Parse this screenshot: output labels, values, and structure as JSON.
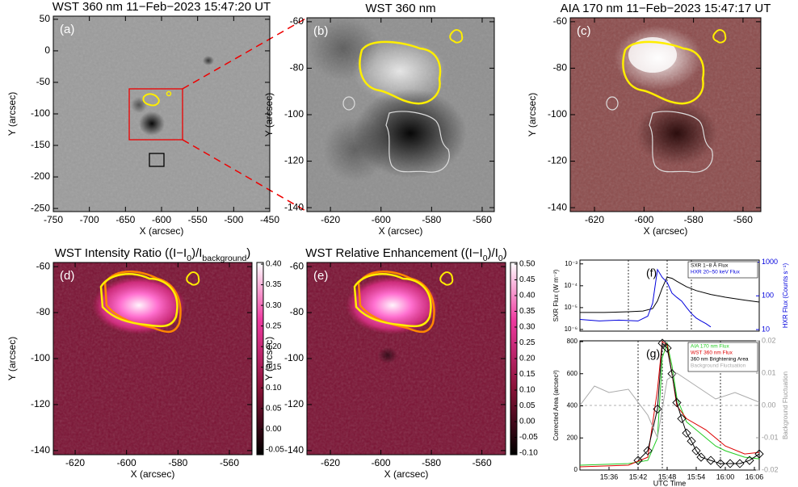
{
  "chart_data": [
    {
      "type": "image",
      "panel": "(a)",
      "title": "WST 360 nm 11−Feb−2023 15:47:20 UT",
      "xlabel": "X (arcsec)",
      "ylabel": "Y (arcsec)",
      "xlim": [
        -750,
        -450
      ],
      "ylim": [
        -255,
        55
      ],
      "xticks": [
        -750,
        -700,
        -650,
        -600,
        -550,
        -500,
        -450
      ],
      "yticks": [
        50,
        0,
        -50,
        -100,
        -150,
        -200,
        -250
      ]
    },
    {
      "type": "image",
      "panel": "(b)",
      "title": "WST 360 nm",
      "xlabel": "X (arcsec)",
      "ylabel": "Y (arcsec)",
      "xlim": [
        -629.3,
        -555.2
      ],
      "ylim": [
        -141.7,
        -58.3
      ],
      "xticks": [
        -620,
        -600,
        -580,
        -560
      ],
      "yticks": [
        -60,
        -80,
        -100,
        -120,
        -140
      ]
    },
    {
      "type": "image",
      "panel": "(c)",
      "title": "AIA 170 nm 11−Feb−2023 15:47:17 UT",
      "xlabel": "X (arcsec)",
      "ylabel": "Y (arcsec)",
      "xlim": [
        -629.8,
        -552.8
      ],
      "ylim": [
        -141.7,
        -58.3
      ],
      "xticks": [
        -620,
        -600,
        -580,
        -560
      ],
      "yticks": [
        -60,
        -80,
        -100,
        -120,
        -140
      ]
    },
    {
      "type": "image",
      "panel": "(d)",
      "title": [
        "WST Intensity Ratio ((I−I",
        "0",
        ")/I",
        "background",
        ")"
      ],
      "xlabel": "X (arcsec)",
      "ylabel": "Y (arcsec)",
      "xlim": [
        -628.5,
        -551.2
      ],
      "ylim": [
        -141.8,
        -58.2
      ],
      "xticks": [
        -620,
        -600,
        -580,
        -560
      ],
      "yticks": [
        -60,
        -80,
        -100,
        -120,
        -140
      ],
      "colorbar": {
        "lim": [
          -0.062,
          0.404
        ],
        "ticks": [
          {
            "value": 0.4,
            "label": "0.40"
          },
          {
            "value": 0.35,
            "label": "0.35"
          },
          {
            "value": 0.3,
            "label": "0.30"
          },
          {
            "value": 0.25,
            "label": "0.25"
          },
          {
            "value": 0.2,
            "label": "0.20"
          },
          {
            "value": 0.15,
            "label": "0.15"
          },
          {
            "value": 0.1,
            "label": "0.10"
          },
          {
            "value": 0.05,
            "label": "0.05"
          },
          {
            "value": 0,
            "label": "0.00"
          },
          {
            "value": -0.05,
            "label": "-0.05"
          }
        ]
      }
    },
    {
      "type": "image",
      "panel": "(e)",
      "title": [
        "WST Relative Enhancement ((I−I",
        "0",
        ")/I",
        "0",
        ")"
      ],
      "xlabel": "X (arcsec)",
      "ylabel": "Y (arcsec)",
      "xlim": [
        -629.3,
        -550.6
      ],
      "ylim": [
        -141.8,
        -58.2
      ],
      "xticks": [
        -620,
        -600,
        -580,
        -560
      ],
      "yticks": [
        -60,
        -80,
        -100,
        -120,
        -140
      ],
      "colorbar": {
        "lim": [
          -0.105,
          0.505
        ],
        "ticks": [
          {
            "value": 0.5,
            "label": "0.50"
          },
          {
            "value": 0.45,
            "label": "0.45"
          },
          {
            "value": 0.4,
            "label": "0.40"
          },
          {
            "value": 0.35,
            "label": "0.35"
          },
          {
            "value": 0.3,
            "label": "0.30"
          },
          {
            "value": 0.25,
            "label": "0.25"
          },
          {
            "value": 0.2,
            "label": "0.20"
          },
          {
            "value": 0.15,
            "label": "0.15"
          },
          {
            "value": 0.1,
            "label": "0.10"
          },
          {
            "value": 0.05,
            "label": "0.05"
          },
          {
            "value": 0,
            "label": "0.00"
          },
          {
            "value": -0.05,
            "label": "-0.05"
          },
          {
            "value": -0.1,
            "label": "-0.10"
          }
        ]
      }
    },
    {
      "type": "line",
      "panel": "(f)",
      "ylabel": "SXR Flux (W m⁻²)",
      "y2label": "HXR Flux (Counts s⁻¹)",
      "y2color": "#0000dd",
      "log": true,
      "xlim": [
        "15:30",
        "16:07"
      ],
      "ylim": [
        8.4e-07,
        0.0015
      ],
      "yticks": [
        {
          "value": 0.001,
          "label": "10⁻³"
        },
        {
          "value": 0.0001,
          "label": "10⁻⁴"
        },
        {
          "value": 1e-05,
          "label": "10⁻⁵"
        },
        {
          "value": 1e-06,
          "label": "10⁻⁶"
        }
      ],
      "y2lim": [
        9,
        1150
      ],
      "y2ticks": [
        1000,
        100,
        10
      ],
      "vlines": [
        "15:40",
        "15:48",
        "15:53"
      ],
      "legend": "upper right",
      "series": [
        {
          "name": "SXR 1−8 Å Flux",
          "color": "#000000",
          "x": [
            "15:30",
            "15:35",
            "15:40",
            "15:43",
            "15:45",
            "15:46",
            "15:47",
            "15:48",
            "15:49",
            "15:50",
            "15:52",
            "15:54",
            "15:57",
            "16:00",
            "16:04",
            "16:07"
          ],
          "values": [
            6e-06,
            6e-06,
            6.5e-06,
            7e-06,
            9e-06,
            2e-05,
            8e-05,
            0.00025,
            0.00022,
            0.00016,
            9e-05,
            6e-05,
            4e-05,
            3e-05,
            2.2e-05,
            1.8e-05
          ]
        },
        {
          "name": "HXR 20−50 keV Flux",
          "color": "#0000dd",
          "axis": "y2",
          "x": [
            "15:30",
            "15:34",
            "15:38",
            "15:42",
            "15:44",
            "15:45",
            "15:46",
            "15:47",
            "15:48",
            "15:49",
            "15:50",
            "15:51",
            "15:52",
            "15:53",
            "15:54",
            "15:55",
            "15:56",
            "15:57"
          ],
          "values": [
            20,
            18,
            19,
            18,
            25,
            60,
            600,
            350,
            250,
            120,
            90,
            70,
            45,
            30,
            22,
            18,
            15,
            12
          ]
        }
      ]
    },
    {
      "type": "line",
      "panel": "(g)",
      "xlabel": "UTC Time",
      "ylabel": "Corrected Area (arcsec²)",
      "y2label": "Background Fluctuation",
      "y2color": "#999999",
      "xlim": [
        "15:30",
        "16:07"
      ],
      "xticks": [
        "15:36",
        "15:42",
        "15:48",
        "15:54",
        "16:00",
        "16:06"
      ],
      "ylim": [
        0,
        805
      ],
      "yticks": [
        0,
        200,
        400,
        600,
        800
      ],
      "y2lim": [
        -0.02,
        0.02
      ],
      "y2ticks": [
        {
          "value": 0.02,
          "label": "0.02"
        },
        {
          "value": 0.01,
          "label": "0.01"
        },
        {
          "value": 0,
          "label": "0.00"
        },
        {
          "value": -0.01,
          "label": "-0.01"
        },
        {
          "value": -0.02,
          "label": "-0.02"
        }
      ],
      "y2_reference": 0,
      "vlines": [
        "15:42",
        "15:47",
        "15:59"
      ],
      "legend": "upper right",
      "series": [
        {
          "name": "AIA 170 nm Flux",
          "color": "#22cc22",
          "x": [
            "15:30",
            "15:40",
            "15:44",
            "15:46",
            "15:47",
            "15:48",
            "15:49",
            "15:50",
            "15:52",
            "15:54",
            "15:56",
            "15:58",
            "16:00",
            "16:04",
            "16:07"
          ],
          "values": [
            30,
            40,
            60,
            200,
            700,
            790,
            650,
            450,
            300,
            250,
            200,
            150,
            120,
            80,
            70
          ]
        },
        {
          "name": "WST 360 nm Flux",
          "color": "#dd0000",
          "x": [
            "15:30",
            "15:40",
            "15:44",
            "15:46",
            "15:47",
            "15:48",
            "15:49",
            "15:50",
            "15:52",
            "15:56",
            "16:00",
            "16:04",
            "16:07"
          ],
          "values": [
            20,
            30,
            80,
            500,
            800,
            780,
            600,
            400,
            320,
            250,
            150,
            100,
            110
          ]
        },
        {
          "name": "360 nm Brightening Area",
          "color": "#000000",
          "marker": "diamond",
          "x": [
            "15:42",
            "15:44",
            "15:46",
            "15:47",
            "15:48",
            "15:49",
            "15:50",
            "15:51",
            "15:52",
            "15:53",
            "15:54",
            "15:55",
            "15:57",
            "15:59",
            "16:01",
            "16:03",
            "16:05",
            "16:07"
          ],
          "values": [
            60,
            120,
            380,
            790,
            760,
            600,
            420,
            320,
            230,
            180,
            120,
            80,
            60,
            40,
            40,
            40,
            60,
            100
          ]
        },
        {
          "name": "Background Fluctuation",
          "color": "#aaaaaa",
          "axis": "y2",
          "x": [
            "15:30",
            "15:33",
            "15:36",
            "15:40",
            "15:44",
            "15:46",
            "15:48",
            "15:50",
            "15:54",
            "15:58",
            "16:02",
            "16:07"
          ],
          "values": [
            0,
            0.006,
            0.004,
            0.005,
            -0.003,
            -0.01,
            0.008,
            0.01,
            0.006,
            0.002,
            0.004,
            0.001
          ]
        }
      ]
    }
  ]
}
